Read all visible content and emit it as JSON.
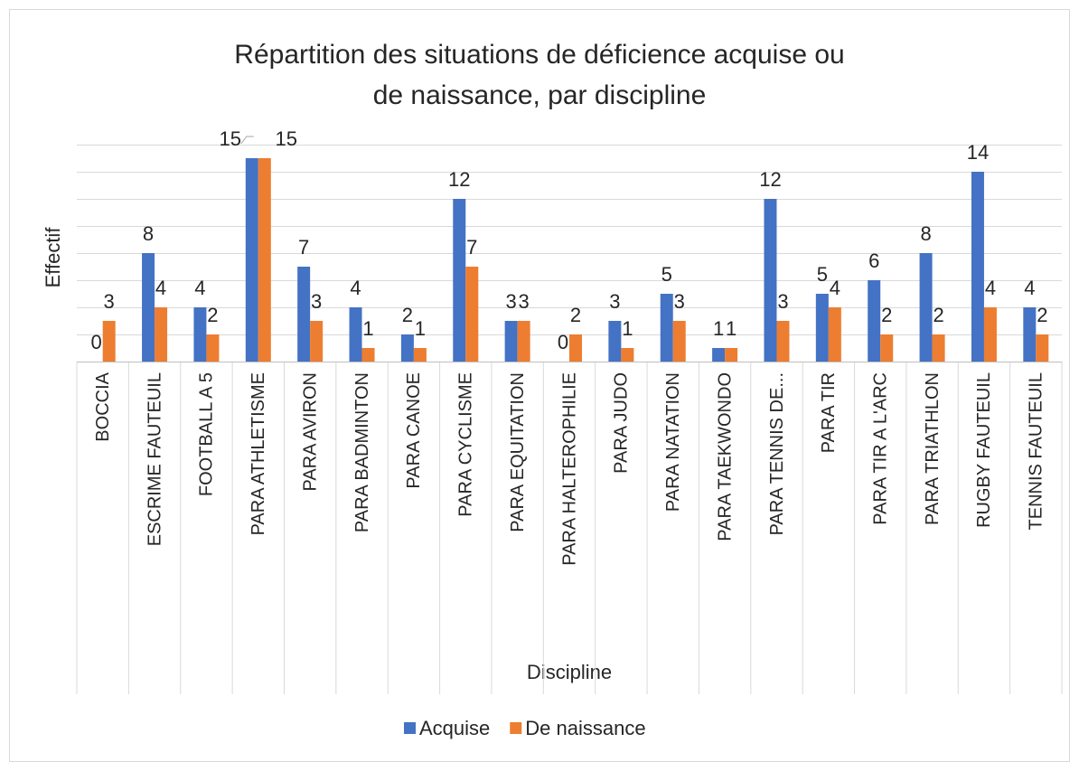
{
  "chart_data": {
    "type": "bar",
    "title": "Répartition des situations de déficience acquise ou de naissance, par discipline",
    "x_label": "Discipline",
    "y_label": "Effectif",
    "categories": [
      "BOCCIA",
      "ESCRIME FAUTEUIL",
      "FOOTBALL A 5",
      "PARA ATHLETISME",
      "PARA AVIRON",
      "PARA BADMINTON",
      "PARA CANOE",
      "PARA CYCLISME",
      "PARA EQUITATION",
      "PARA HALTEROPHILIE",
      "PARA JUDO",
      "PARA NATATION",
      "PARA TAEKWONDO",
      "PARA TENNIS DE...",
      "PARA TIR",
      "PARA TIR A L'ARC",
      "PARA TRIATHLON",
      "RUGBY FAUTEUIL",
      "TENNIS FAUTEUIL"
    ],
    "series": [
      {
        "name": "Acquise",
        "color": "#4472c4",
        "values": [
          0,
          8,
          4,
          15,
          7,
          4,
          2,
          12,
          3,
          0,
          3,
          5,
          1,
          12,
          5,
          6,
          8,
          14,
          4
        ]
      },
      {
        "name": "De naissance",
        "color": "#ed7d31",
        "values": [
          3,
          4,
          2,
          15,
          3,
          1,
          1,
          7,
          3,
          2,
          1,
          3,
          1,
          3,
          4,
          2,
          2,
          4,
          2
        ]
      }
    ],
    "ylim": [
      0,
      16
    ],
    "yticks": [
      0,
      2,
      4,
      6,
      8,
      10,
      12,
      14,
      16
    ],
    "grid": true,
    "legend": "bottom"
  }
}
